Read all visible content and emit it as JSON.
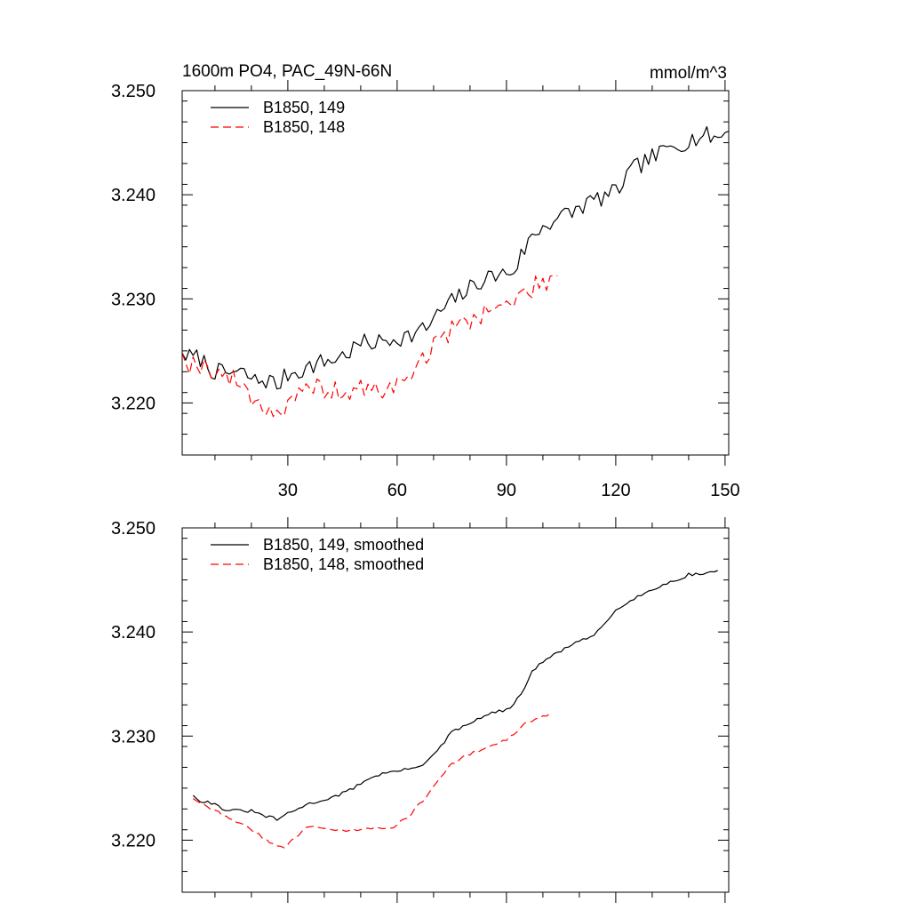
{
  "chart_data": [
    {
      "type": "line",
      "title": "1600m PO4, PAC_49N-66N",
      "units": "mmol/m^3",
      "xlim": [
        1,
        151
      ],
      "ylim": [
        3.215,
        3.25
      ],
      "xticks": [
        30,
        60,
        90,
        120,
        150
      ],
      "xtick_labels": [
        "30",
        "60",
        "90",
        "120",
        "150"
      ],
      "yticks": [
        3.22,
        3.23,
        3.24,
        3.25
      ],
      "ytick_labels": [
        "3.220",
        "3.230",
        "3.240",
        "3.250"
      ],
      "legend_position": "top-left",
      "series": [
        {
          "name": "B1850, 149",
          "color": "#000000",
          "style": "solid",
          "keypoints": [
            [
              1,
              3.2248
            ],
            [
              3,
              3.2244
            ],
            [
              6,
              3.2243
            ],
            [
              9,
              3.2232
            ],
            [
              12,
              3.2228
            ],
            [
              15,
              3.2229
            ],
            [
              18,
              3.2228
            ],
            [
              21,
              3.2221
            ],
            [
              25,
              3.2222
            ],
            [
              27,
              3.2216
            ],
            [
              30,
              3.2228
            ],
            [
              34,
              3.2232
            ],
            [
              38,
              3.2238
            ],
            [
              42,
              3.2241
            ],
            [
              46,
              3.2247
            ],
            [
              50,
              3.2257
            ],
            [
              55,
              3.2258
            ],
            [
              60,
              3.2263
            ],
            [
              64,
              3.2265
            ],
            [
              68,
              3.2272
            ],
            [
              72,
              3.2288
            ],
            [
              76,
              3.23
            ],
            [
              80,
              3.231
            ],
            [
              84,
              3.232
            ],
            [
              88,
              3.2323
            ],
            [
              92,
              3.2327
            ],
            [
              96,
              3.2355
            ],
            [
              100,
              3.237
            ],
            [
              104,
              3.2378
            ],
            [
              108,
              3.2383
            ],
            [
              112,
              3.2392
            ],
            [
              116,
              3.2397
            ],
            [
              120,
              3.2402
            ],
            [
              124,
              3.2422
            ],
            [
              128,
              3.2432
            ],
            [
              132,
              3.2439
            ],
            [
              136,
              3.2448
            ],
            [
              140,
              3.2452
            ],
            [
              144,
              3.2457
            ],
            [
              148,
              3.2455
            ],
            [
              151,
              3.2461
            ]
          ],
          "noise_amplitude": 0.0009,
          "noise_seed": 7
        },
        {
          "name": "B1850, 148",
          "color": "#ff0000",
          "style": "dashed",
          "keypoints": [
            [
              1,
              3.2248
            ],
            [
              3,
              3.2238
            ],
            [
              6,
              3.2237
            ],
            [
              9,
              3.2233
            ],
            [
              12,
              3.2227
            ],
            [
              15,
              3.2222
            ],
            [
              18,
              3.2216
            ],
            [
              21,
              3.2202
            ],
            [
              24,
              3.2196
            ],
            [
              27,
              3.219
            ],
            [
              30,
              3.2196
            ],
            [
              33,
              3.2205
            ],
            [
              37,
              3.2216
            ],
            [
              41,
              3.2213
            ],
            [
              45,
              3.2208
            ],
            [
              49,
              3.2213
            ],
            [
              53,
              3.2212
            ],
            [
              57,
              3.2213
            ],
            [
              61,
              3.2218
            ],
            [
              65,
              3.2235
            ],
            [
              69,
              3.225
            ],
            [
              73,
              3.2265
            ],
            [
              77,
              3.2275
            ],
            [
              81,
              3.2282
            ],
            [
              85,
              3.229
            ],
            [
              89,
              3.2292
            ],
            [
              93,
              3.23
            ],
            [
              97,
              3.231
            ],
            [
              101,
              3.2318
            ],
            [
              104,
              3.2322
            ]
          ],
          "noise_amplitude": 0.001,
          "noise_seed": 19
        }
      ]
    },
    {
      "type": "line",
      "xlim": [
        1,
        151
      ],
      "ylim": [
        3.215,
        3.25
      ],
      "xticks": [
        30,
        60,
        90,
        120,
        150
      ],
      "xtick_labels": [],
      "yticks": [
        3.22,
        3.23,
        3.24,
        3.25
      ],
      "ytick_labels": [
        "3.220",
        "3.230",
        "3.240",
        "3.250"
      ],
      "legend_position": "top-left",
      "series": [
        {
          "name": "B1850, 149, smoothed",
          "color": "#000000",
          "style": "solid",
          "keypoints": [
            [
              4,
              3.2243
            ],
            [
              6,
              3.2238
            ],
            [
              9,
              3.2236
            ],
            [
              13,
              3.2229
            ],
            [
              17,
              3.2228
            ],
            [
              20,
              3.2228
            ],
            [
              23,
              3.2224
            ],
            [
              27,
              3.222
            ],
            [
              31,
              3.2227
            ],
            [
              35,
              3.2234
            ],
            [
              39,
              3.2238
            ],
            [
              43,
              3.2242
            ],
            [
              47,
              3.2248
            ],
            [
              51,
              3.2257
            ],
            [
              55,
              3.2263
            ],
            [
              59,
              3.2266
            ],
            [
              63,
              3.2268
            ],
            [
              67,
              3.2273
            ],
            [
              71,
              3.2285
            ],
            [
              75,
              3.2304
            ],
            [
              79,
              3.231
            ],
            [
              83,
              3.2318
            ],
            [
              87,
              3.2323
            ],
            [
              91,
              3.2326
            ],
            [
              94,
              3.234
            ],
            [
              97,
              3.2362
            ],
            [
              101,
              3.2374
            ],
            [
              105,
              3.2382
            ],
            [
              109,
              3.239
            ],
            [
              113,
              3.2394
            ],
            [
              116,
              3.2404
            ],
            [
              120,
              3.2421
            ],
            [
              124,
              3.2431
            ],
            [
              128,
              3.2437
            ],
            [
              132,
              3.2444
            ],
            [
              136,
              3.2449
            ],
            [
              140,
              3.2455
            ],
            [
              144,
              3.2456
            ],
            [
              148,
              3.2459
            ]
          ],
          "noise_amplitude": 0.00015,
          "noise_seed": 31
        },
        {
          "name": "B1850, 148, smoothed",
          "color": "#ff0000",
          "style": "dashed",
          "keypoints": [
            [
              4,
              3.224
            ],
            [
              7,
              3.2235
            ],
            [
              10,
              3.2228
            ],
            [
              14,
              3.2222
            ],
            [
              18,
              3.2214
            ],
            [
              22,
              3.2205
            ],
            [
              26,
              3.2196
            ],
            [
              29,
              3.2194
            ],
            [
              32,
              3.2202
            ],
            [
              35,
              3.2212
            ],
            [
              39,
              3.2213
            ],
            [
              43,
              3.2209
            ],
            [
              47,
              3.2209
            ],
            [
              51,
              3.2212
            ],
            [
              55,
              3.2212
            ],
            [
              59,
              3.2213
            ],
            [
              63,
              3.2222
            ],
            [
              67,
              3.2238
            ],
            [
              71,
              3.2256
            ],
            [
              75,
              3.2273
            ],
            [
              79,
              3.2281
            ],
            [
              83,
              3.2287
            ],
            [
              87,
              3.2291
            ],
            [
              91,
              3.2299
            ],
            [
              95,
              3.2311
            ],
            [
              99,
              3.2317
            ],
            [
              102,
              3.2322
            ]
          ],
          "noise_amplitude": 0.00015,
          "noise_seed": 43
        }
      ]
    }
  ]
}
